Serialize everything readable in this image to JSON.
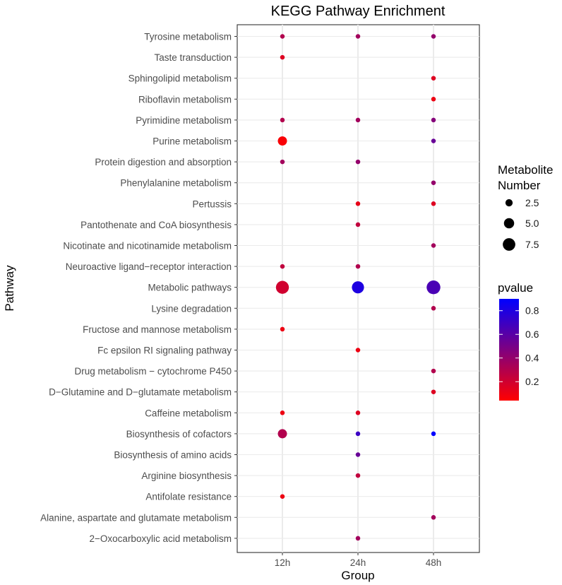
{
  "chart_data": {
    "type": "scatter",
    "title": "KEGG Pathway Enrichment",
    "xlabel": "Group",
    "ylabel": "Pathway",
    "categories": [
      "12h",
      "24h",
      "48h"
    ],
    "pathways": [
      "Tyrosine metabolism",
      "Taste transduction",
      "Sphingolipid metabolism",
      "Riboflavin metabolism",
      "Pyrimidine metabolism",
      "Purine metabolism",
      "Protein digestion and absorption",
      "Phenylalanine metabolism",
      "Pertussis",
      "Pantothenate and CoA biosynthesis",
      "Nicotinate and nicotinamide metabolism",
      "Neuroactive ligand−receptor interaction",
      "Metabolic pathways",
      "Lysine degradation",
      "Fructose and mannose metabolism",
      "Fc epsilon RI signaling pathway",
      "Drug metabolism − cytochrome P450",
      "D−Glutamine and D−glutamate metabolism",
      "Caffeine metabolism",
      "Biosynthesis of cofactors",
      "Biosynthesis of amino acids",
      "Arginine biosynthesis",
      "Antifolate resistance",
      "Alanine, aspartate and glutamate metabolism",
      "2−Oxocarboxylic acid metabolism"
    ],
    "points": [
      {
        "pathway": "Tyrosine metabolism",
        "group": "12h",
        "number": 1,
        "pvalue": 0.3
      },
      {
        "pathway": "Tyrosine metabolism",
        "group": "24h",
        "number": 1,
        "pvalue": 0.35
      },
      {
        "pathway": "Tyrosine metabolism",
        "group": "48h",
        "number": 1,
        "pvalue": 0.4
      },
      {
        "pathway": "Taste transduction",
        "group": "12h",
        "number": 1,
        "pvalue": 0.15
      },
      {
        "pathway": "Sphingolipid metabolism",
        "group": "48h",
        "number": 1,
        "pvalue": 0.15
      },
      {
        "pathway": "Riboflavin metabolism",
        "group": "48h",
        "number": 1,
        "pvalue": 0.1
      },
      {
        "pathway": "Pyrimidine metabolism",
        "group": "12h",
        "number": 1,
        "pvalue": 0.3
      },
      {
        "pathway": "Pyrimidine metabolism",
        "group": "24h",
        "number": 1,
        "pvalue": 0.35
      },
      {
        "pathway": "Pyrimidine metabolism",
        "group": "48h",
        "number": 1,
        "pvalue": 0.45
      },
      {
        "pathway": "Purine metabolism",
        "group": "12h",
        "number": 4,
        "pvalue": 0.06
      },
      {
        "pathway": "Purine metabolism",
        "group": "48h",
        "number": 1,
        "pvalue": 0.55
      },
      {
        "pathway": "Protein digestion and absorption",
        "group": "12h",
        "number": 1,
        "pvalue": 0.35
      },
      {
        "pathway": "Protein digestion and absorption",
        "group": "24h",
        "number": 1,
        "pvalue": 0.4
      },
      {
        "pathway": "Phenylalanine metabolism",
        "group": "48h",
        "number": 1,
        "pvalue": 0.4
      },
      {
        "pathway": "Pertussis",
        "group": "24h",
        "number": 1,
        "pvalue": 0.12
      },
      {
        "pathway": "Pertussis",
        "group": "48h",
        "number": 1,
        "pvalue": 0.15
      },
      {
        "pathway": "Pantothenate and CoA biosynthesis",
        "group": "24h",
        "number": 1,
        "pvalue": 0.25
      },
      {
        "pathway": "Nicotinate and nicotinamide metabolism",
        "group": "48h",
        "number": 1,
        "pvalue": 0.35
      },
      {
        "pathway": "Neuroactive ligand−receptor interaction",
        "group": "12h",
        "number": 1,
        "pvalue": 0.25
      },
      {
        "pathway": "Neuroactive ligand−receptor interaction",
        "group": "24h",
        "number": 1,
        "pvalue": 0.3
      },
      {
        "pathway": "Metabolic pathways",
        "group": "12h",
        "number": 8,
        "pvalue": 0.2
      },
      {
        "pathway": "Metabolic pathways",
        "group": "24h",
        "number": 7,
        "pvalue": 0.8
      },
      {
        "pathway": "Metabolic pathways",
        "group": "48h",
        "number": 9,
        "pvalue": 0.65
      },
      {
        "pathway": "Lysine degradation",
        "group": "48h",
        "number": 1,
        "pvalue": 0.3
      },
      {
        "pathway": "Fructose and mannose metabolism",
        "group": "12h",
        "number": 1,
        "pvalue": 0.1
      },
      {
        "pathway": "Fc epsilon RI signaling pathway",
        "group": "24h",
        "number": 1,
        "pvalue": 0.1
      },
      {
        "pathway": "Drug metabolism − cytochrome P450",
        "group": "48h",
        "number": 1,
        "pvalue": 0.3
      },
      {
        "pathway": "D−Glutamine and D−glutamate metabolism",
        "group": "48h",
        "number": 1,
        "pvalue": 0.15
      },
      {
        "pathway": "Caffeine metabolism",
        "group": "12h",
        "number": 1,
        "pvalue": 0.1
      },
      {
        "pathway": "Caffeine metabolism",
        "group": "24h",
        "number": 1,
        "pvalue": 0.15
      },
      {
        "pathway": "Biosynthesis of cofactors",
        "group": "12h",
        "number": 4,
        "pvalue": 0.3
      },
      {
        "pathway": "Biosynthesis of cofactors",
        "group": "24h",
        "number": 1,
        "pvalue": 0.7
      },
      {
        "pathway": "Biosynthesis of cofactors",
        "group": "48h",
        "number": 1,
        "pvalue": 0.9
      },
      {
        "pathway": "Biosynthesis of amino acids",
        "group": "24h",
        "number": 1,
        "pvalue": 0.55
      },
      {
        "pathway": "Arginine biosynthesis",
        "group": "24h",
        "number": 1,
        "pvalue": 0.25
      },
      {
        "pathway": "Antifolate resistance",
        "group": "12h",
        "number": 1,
        "pvalue": 0.1
      },
      {
        "pathway": "Alanine, aspartate and glutamate metabolism",
        "group": "48h",
        "number": 1,
        "pvalue": 0.35
      },
      {
        "pathway": "2−Oxocarboxylic acid metabolism",
        "group": "24h",
        "number": 1,
        "pvalue": 0.35
      }
    ],
    "size_legend": {
      "title_line1": "Metabolite",
      "title_line2": "Number",
      "values": [
        2.5,
        5.0,
        7.5
      ],
      "labels": [
        "2.5",
        "5.0",
        "7.5"
      ]
    },
    "color_legend": {
      "title": "pvalue",
      "range": [
        0.04,
        0.9
      ],
      "ticks": [
        0.2,
        0.4,
        0.6,
        0.8
      ],
      "tick_labels": [
        "0.2",
        "0.4",
        "0.6",
        "0.8"
      ],
      "low_color": "#ff0000",
      "high_color": "#0000ff"
    },
    "grid": true,
    "legend_position": "right"
  }
}
